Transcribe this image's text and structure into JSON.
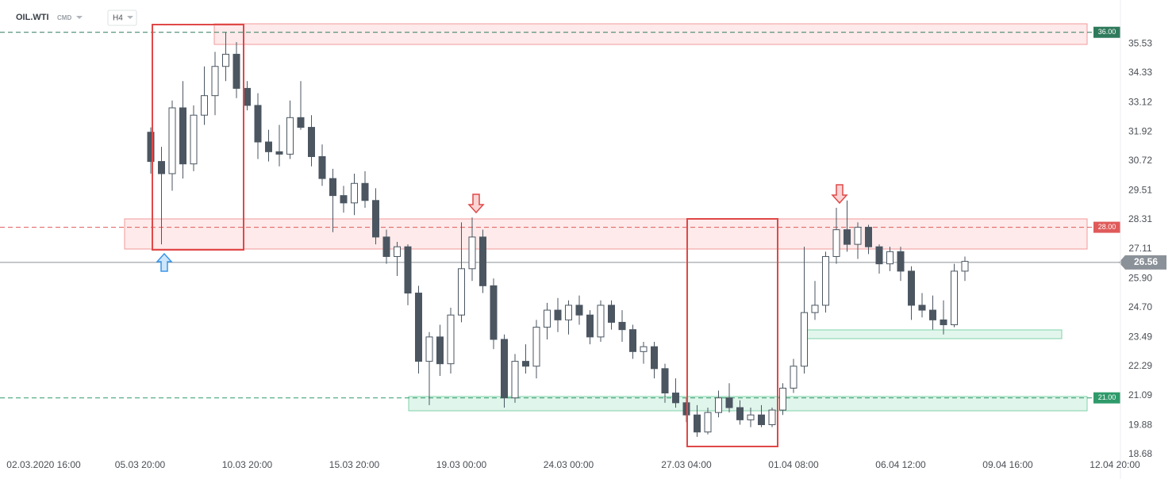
{
  "header": {
    "symbol": "OIL.WTI",
    "market": "CMD",
    "timeframe": "H4"
  },
  "chart_data": {
    "type": "candlestick",
    "categories": [
      "02.03.2020 16:00",
      null,
      null,
      null,
      null,
      null,
      null,
      null,
      null,
      "05.03 20:00",
      null,
      null,
      null,
      null,
      null,
      null,
      null,
      null,
      null,
      "10.03 20:00",
      null,
      null,
      null,
      null,
      null,
      null,
      null,
      null,
      null,
      "15.03 20:00",
      null,
      null,
      null,
      null,
      null,
      null,
      null,
      null,
      null,
      "19.03 00:00",
      null,
      null,
      null,
      null,
      null,
      null,
      null,
      null,
      null,
      "24.03 00:00",
      null,
      null,
      null,
      null,
      null,
      null,
      null,
      null,
      null,
      null,
      "27.03 04:00",
      null,
      null,
      null,
      null,
      null,
      null,
      null,
      null,
      null,
      "01.04 08:00",
      null,
      null,
      null,
      null,
      null,
      null,
      null,
      null,
      null,
      "06.04 12:00",
      null,
      null,
      null,
      null,
      null,
      null,
      null,
      null,
      null,
      "09.04 16:00",
      null,
      null,
      null,
      null,
      null,
      null,
      null,
      null,
      null,
      "12.04 20:00"
    ],
    "open": [
      null,
      null,
      null,
      null,
      null,
      null,
      null,
      null,
      null,
      null,
      31.9,
      30.7,
      30.2,
      32.9,
      30.6,
      32.6,
      33.4,
      34.6,
      35.1,
      33.7,
      33.0,
      31.5,
      31.1,
      31.0,
      32.5,
      32.1,
      30.9,
      30.0,
      29.3,
      29.0,
      29.8,
      29.1,
      27.6,
      26.8,
      27.2,
      25.3,
      22.5,
      23.5,
      22.4,
      24.4,
      26.3,
      27.6,
      25.6,
      23.4,
      21.0,
      22.5,
      22.3,
      23.9,
      24.6,
      24.2,
      24.8,
      24.4,
      23.5,
      24.8,
      24.1,
      23.8,
      22.9,
      23.1,
      22.2,
      21.2,
      20.8,
      20.3,
      19.6,
      20.4,
      21.0,
      20.6,
      20.1,
      20.3,
      19.9,
      20.5,
      21.4,
      22.3,
      24.5,
      24.8,
      26.8,
      27.9,
      27.3,
      28.0,
      27.2,
      26.5,
      27.0,
      26.2,
      24.8,
      24.6,
      24.2,
      24.0,
      26.2,
      null,
      null,
      null,
      null,
      null,
      null,
      null,
      null,
      null,
      null,
      null,
      null,
      null,
      null
    ],
    "high": [
      null,
      null,
      null,
      null,
      null,
      null,
      null,
      null,
      null,
      null,
      32.1,
      31.3,
      33.2,
      34.0,
      33.0,
      34.6,
      35.2,
      36.0,
      35.6,
      34.0,
      33.5,
      32.0,
      32.2,
      33.2,
      34.0,
      32.6,
      31.4,
      30.4,
      29.7,
      30.2,
      30.3,
      29.6,
      27.9,
      27.4,
      27.3,
      25.6,
      23.7,
      24.0,
      24.7,
      28.2,
      28.4,
      27.9,
      25.9,
      23.6,
      22.8,
      23.2,
      24.2,
      24.9,
      25.1,
      25.0,
      25.2,
      24.6,
      25.0,
      25.0,
      24.6,
      24.0,
      23.3,
      23.3,
      22.4,
      21.8,
      21.0,
      20.7,
      20.6,
      21.3,
      21.6,
      20.9,
      20.6,
      20.7,
      20.6,
      21.6,
      22.6,
      27.2,
      25.8,
      27.0,
      28.8,
      29.1,
      28.2,
      28.1,
      27.3,
      27.2,
      27.2,
      26.4,
      25.3,
      25.2,
      25.0,
      26.5,
      26.8,
      null,
      null,
      null,
      null,
      null,
      null,
      null,
      null,
      null,
      null,
      null,
      null,
      null,
      null
    ],
    "low": [
      null,
      null,
      null,
      null,
      null,
      null,
      null,
      null,
      null,
      null,
      30.2,
      27.3,
      29.5,
      30.0,
      30.3,
      32.2,
      32.6,
      34.0,
      33.3,
      32.8,
      30.8,
      30.7,
      30.5,
      30.8,
      32.0,
      30.5,
      29.7,
      27.8,
      28.6,
      28.5,
      28.8,
      27.3,
      26.5,
      26.0,
      24.8,
      22.0,
      20.7,
      21.9,
      22.0,
      24.1,
      25.8,
      25.3,
      23.0,
      20.6,
      20.8,
      22.0,
      21.8,
      23.4,
      23.7,
      23.6,
      24.0,
      23.2,
      23.3,
      23.8,
      23.3,
      22.6,
      22.4,
      21.8,
      20.8,
      20.6,
      20.0,
      19.4,
      19.5,
      20.2,
      20.4,
      19.9,
      19.8,
      19.8,
      19.8,
      20.3,
      21.2,
      22.0,
      24.2,
      24.5,
      26.5,
      27.0,
      26.7,
      26.9,
      26.1,
      26.2,
      25.8,
      24.2,
      24.3,
      23.8,
      23.6,
      23.9,
      25.8,
      null,
      null,
      null,
      null,
      null,
      null,
      null,
      null,
      null,
      null,
      null,
      null,
      null,
      null
    ],
    "close": [
      null,
      null,
      null,
      null,
      null,
      null,
      null,
      null,
      null,
      null,
      30.7,
      30.2,
      32.9,
      30.6,
      32.6,
      33.4,
      34.6,
      35.1,
      33.7,
      33.0,
      31.5,
      31.1,
      31.0,
      32.5,
      32.1,
      30.9,
      30.0,
      29.3,
      29.0,
      29.8,
      29.1,
      27.6,
      26.8,
      27.2,
      25.3,
      22.5,
      23.5,
      22.4,
      24.4,
      26.3,
      27.6,
      25.6,
      23.4,
      21.0,
      22.5,
      22.3,
      23.9,
      24.6,
      24.2,
      24.8,
      24.4,
      23.5,
      24.8,
      24.1,
      23.8,
      22.9,
      23.1,
      22.2,
      21.2,
      20.8,
      20.3,
      19.6,
      20.4,
      21.0,
      20.6,
      20.1,
      20.3,
      19.9,
      20.5,
      21.4,
      22.3,
      24.5,
      24.8,
      26.8,
      27.9,
      27.3,
      28.0,
      27.2,
      26.5,
      27.0,
      26.2,
      24.8,
      24.6,
      24.2,
      24.0,
      26.2,
      26.6,
      null,
      null,
      null,
      null,
      null,
      null,
      null,
      null,
      null,
      null,
      null,
      null,
      null,
      null
    ],
    "up_color": "#ffffff",
    "down_color": "#4b5661",
    "wick_color": "#4b5661",
    "ylim": [
      18.68,
      37.0
    ],
    "yticks": [
      35.53,
      34.33,
      33.12,
      31.92,
      30.72,
      29.51,
      28.31,
      27.11,
      {
        "value": 25.9,
        "label": "25.90"
      },
      {
        "value": 24.7,
        "label": "24.70"
      },
      23.49,
      22.29,
      21.09,
      19.88,
      18.68
    ],
    "levels": [
      {
        "value": 36,
        "label": "36.00",
        "color": "#2f7a5c"
      },
      {
        "value": 28,
        "label": "28.00",
        "color": "#e05a5a"
      },
      {
        "value": 21,
        "label": "21.00",
        "color": "#2f9a6a"
      }
    ],
    "last_price": {
      "value": 26.56,
      "color": "#8b9198"
    }
  }
}
